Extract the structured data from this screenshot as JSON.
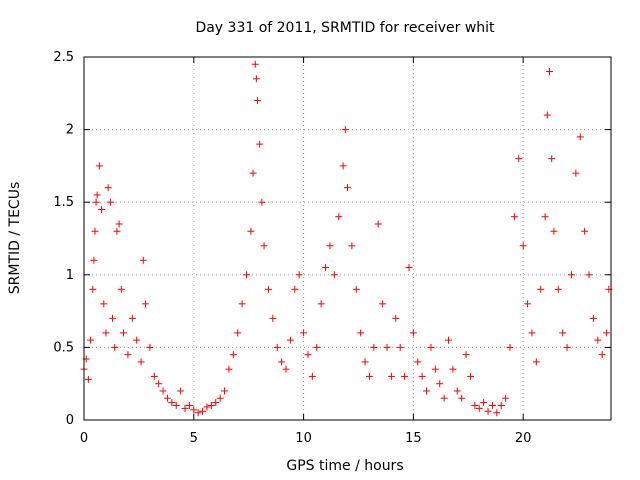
{
  "colors": {
    "series": "#ff0000",
    "grid": "#a0a0a0",
    "axis": "#000000"
  },
  "chart_data": {
    "type": "scatter",
    "title": "Day 331 of 2011, SRMTID for receiver whit",
    "xlabel": "GPS time / hours",
    "ylabel": "SRMTID / TECUs",
    "xlim": [
      0,
      24
    ],
    "ylim": [
      0,
      2.5
    ],
    "xticks": [
      0,
      5,
      10,
      15,
      20
    ],
    "yticks": [
      0,
      0.5,
      1,
      1.5,
      2,
      2.5
    ],
    "ytick_labels": [
      "0",
      "0.5",
      "1",
      "1.5",
      "2",
      "2.5"
    ],
    "grid": true,
    "marker": "+",
    "series": [
      {
        "name": "SRMTID",
        "points": [
          [
            0.0,
            0.35
          ],
          [
            0.1,
            0.42
          ],
          [
            0.2,
            0.28
          ],
          [
            0.3,
            0.55
          ],
          [
            0.4,
            0.9
          ],
          [
            0.45,
            1.1
          ],
          [
            0.5,
            1.3
          ],
          [
            0.55,
            1.5
          ],
          [
            0.6,
            1.55
          ],
          [
            0.7,
            1.75
          ],
          [
            0.8,
            1.45
          ],
          [
            0.9,
            0.8
          ],
          [
            1.0,
            0.6
          ],
          [
            1.1,
            1.6
          ],
          [
            1.2,
            1.5
          ],
          [
            1.3,
            0.7
          ],
          [
            1.4,
            0.5
          ],
          [
            1.5,
            1.3
          ],
          [
            1.6,
            1.35
          ],
          [
            1.7,
            0.9
          ],
          [
            1.8,
            0.6
          ],
          [
            2.0,
            0.45
          ],
          [
            2.2,
            0.7
          ],
          [
            2.4,
            0.55
          ],
          [
            2.6,
            0.4
          ],
          [
            2.7,
            1.1
          ],
          [
            2.8,
            0.8
          ],
          [
            3.0,
            0.5
          ],
          [
            3.2,
            0.3
          ],
          [
            3.4,
            0.25
          ],
          [
            3.6,
            0.2
          ],
          [
            3.8,
            0.15
          ],
          [
            4.0,
            0.12
          ],
          [
            4.2,
            0.1
          ],
          [
            4.4,
            0.2
          ],
          [
            4.6,
            0.08
          ],
          [
            4.8,
            0.1
          ],
          [
            5.0,
            0.07
          ],
          [
            5.2,
            0.05
          ],
          [
            5.4,
            0.06
          ],
          [
            5.6,
            0.09
          ],
          [
            5.8,
            0.1
          ],
          [
            6.0,
            0.12
          ],
          [
            6.2,
            0.15
          ],
          [
            6.4,
            0.2
          ],
          [
            6.6,
            0.35
          ],
          [
            6.8,
            0.45
          ],
          [
            7.0,
            0.6
          ],
          [
            7.2,
            0.8
          ],
          [
            7.4,
            1.0
          ],
          [
            7.6,
            1.3
          ],
          [
            7.7,
            1.7
          ],
          [
            7.8,
            2.45
          ],
          [
            7.85,
            2.35
          ],
          [
            7.9,
            2.2
          ],
          [
            8.0,
            1.9
          ],
          [
            8.1,
            1.5
          ],
          [
            8.2,
            1.2
          ],
          [
            8.4,
            0.9
          ],
          [
            8.6,
            0.7
          ],
          [
            8.8,
            0.5
          ],
          [
            9.0,
            0.4
          ],
          [
            9.2,
            0.35
          ],
          [
            9.4,
            0.55
          ],
          [
            9.6,
            0.9
          ],
          [
            9.8,
            1.0
          ],
          [
            10.0,
            0.6
          ],
          [
            10.2,
            0.45
          ],
          [
            10.4,
            0.3
          ],
          [
            10.6,
            0.5
          ],
          [
            10.8,
            0.8
          ],
          [
            11.0,
            1.05
          ],
          [
            11.2,
            1.2
          ],
          [
            11.4,
            1.0
          ],
          [
            11.6,
            1.4
          ],
          [
            11.8,
            1.75
          ],
          [
            11.9,
            2.0
          ],
          [
            12.0,
            1.6
          ],
          [
            12.2,
            1.2
          ],
          [
            12.4,
            0.9
          ],
          [
            12.6,
            0.6
          ],
          [
            12.8,
            0.4
          ],
          [
            13.0,
            0.3
          ],
          [
            13.2,
            0.5
          ],
          [
            13.4,
            1.35
          ],
          [
            13.6,
            0.8
          ],
          [
            13.8,
            0.5
          ],
          [
            14.0,
            0.3
          ],
          [
            14.2,
            0.7
          ],
          [
            14.4,
            0.5
          ],
          [
            14.6,
            0.3
          ],
          [
            14.8,
            1.05
          ],
          [
            15.0,
            0.6
          ],
          [
            15.2,
            0.4
          ],
          [
            15.4,
            0.3
          ],
          [
            15.6,
            0.2
          ],
          [
            15.8,
            0.5
          ],
          [
            16.0,
            0.35
          ],
          [
            16.2,
            0.25
          ],
          [
            16.4,
            0.15
          ],
          [
            16.6,
            0.55
          ],
          [
            16.8,
            0.35
          ],
          [
            17.0,
            0.2
          ],
          [
            17.2,
            0.15
          ],
          [
            17.4,
            0.45
          ],
          [
            17.6,
            0.3
          ],
          [
            17.8,
            0.1
          ],
          [
            18.0,
            0.08
          ],
          [
            18.2,
            0.12
          ],
          [
            18.4,
            0.06
          ],
          [
            18.6,
            0.1
          ],
          [
            18.8,
            0.05
          ],
          [
            19.0,
            0.1
          ],
          [
            19.2,
            0.15
          ],
          [
            19.4,
            0.5
          ],
          [
            19.6,
            1.4
          ],
          [
            19.8,
            1.8
          ],
          [
            20.0,
            1.2
          ],
          [
            20.2,
            0.8
          ],
          [
            20.4,
            0.6
          ],
          [
            20.6,
            0.4
          ],
          [
            20.8,
            0.9
          ],
          [
            21.0,
            1.4
          ],
          [
            21.1,
            2.1
          ],
          [
            21.2,
            2.4
          ],
          [
            21.3,
            1.8
          ],
          [
            21.4,
            1.3
          ],
          [
            21.6,
            0.9
          ],
          [
            21.8,
            0.6
          ],
          [
            22.0,
            0.5
          ],
          [
            22.2,
            1.0
          ],
          [
            22.4,
            1.7
          ],
          [
            22.6,
            1.95
          ],
          [
            22.8,
            1.3
          ],
          [
            23.0,
            1.0
          ],
          [
            23.2,
            0.7
          ],
          [
            23.4,
            0.55
          ],
          [
            23.6,
            0.45
          ],
          [
            23.8,
            0.6
          ],
          [
            23.9,
            0.9
          ]
        ]
      }
    ]
  }
}
